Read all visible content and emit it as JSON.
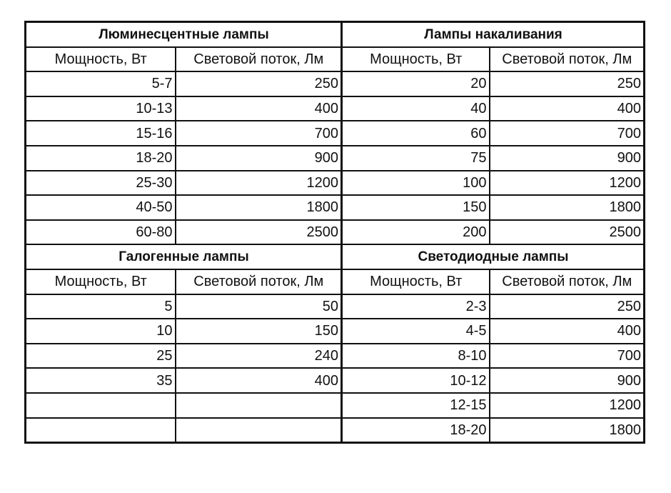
{
  "column_headers": {
    "power": "Мощность, Вт",
    "flux": "Световой поток, Лм"
  },
  "sections": [
    {
      "title": "Люминесцентные лампы",
      "rows": [
        [
          "5-7",
          "250"
        ],
        [
          "10-13",
          "400"
        ],
        [
          "15-16",
          "700"
        ],
        [
          "18-20",
          "900"
        ],
        [
          "25-30",
          "1200"
        ],
        [
          "40-50",
          "1800"
        ],
        [
          "60-80",
          "2500"
        ]
      ]
    },
    {
      "title": "Лампы накаливания",
      "rows": [
        [
          "20",
          "250"
        ],
        [
          "40",
          "400"
        ],
        [
          "60",
          "700"
        ],
        [
          "75",
          "900"
        ],
        [
          "100",
          "1200"
        ],
        [
          "150",
          "1800"
        ],
        [
          "200",
          "2500"
        ]
      ]
    },
    {
      "title": "Галогенные лампы",
      "rows": [
        [
          "5",
          "50"
        ],
        [
          "10",
          "150"
        ],
        [
          "25",
          "240"
        ],
        [
          "35",
          "400"
        ],
        [
          "",
          ""
        ],
        [
          "",
          ""
        ]
      ]
    },
    {
      "title": "Светодиодные лампы",
      "rows": [
        [
          "2-3",
          "250"
        ],
        [
          "4-5",
          "400"
        ],
        [
          "8-10",
          "700"
        ],
        [
          "10-12",
          "900"
        ],
        [
          "12-15",
          "1200"
        ],
        [
          "18-20",
          "1800"
        ]
      ]
    }
  ]
}
